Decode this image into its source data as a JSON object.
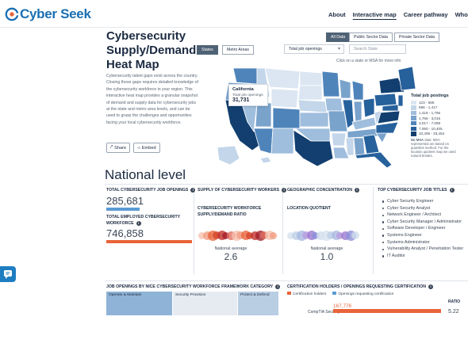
{
  "brand": {
    "name": "Cyber Seek"
  },
  "nav": {
    "items": [
      "About",
      "Interactive map",
      "Career pathway",
      "Who th"
    ]
  },
  "hero": {
    "title": "Cybersecurity Supply/Demand Heat Map",
    "description": "Cybersecurity talent gaps exist across the country. Closing these gaps requires detailed knowledge of the cybersecurity workforce in your region. This interactive heat map provides a granular snapshot of demand and supply data for cybersecurity jobs at the state and metro area levels, and can be used to grasp the challenges and opportunities facing your local cybersecurity workforce.",
    "share_label": "Share",
    "embed_label": "Embed"
  },
  "map_controls": {
    "sector_toggles": [
      "All Data",
      "Public Sector Data",
      "Private Sector Data"
    ],
    "area_toggles": [
      "States",
      "Metro Areas"
    ],
    "metric_select": "Total job openings",
    "search_placeholder": "Search State",
    "hint": "Click on a state or MSA for more info"
  },
  "tooltip": {
    "state": "California",
    "label": "Total job openings",
    "value": "31,731"
  },
  "legend": {
    "title": "Total job postings",
    "ranges": [
      "123 - 595",
      "596 - 1,417",
      "1,418 - 1,765",
      "1,766 - 3,016",
      "3,017 - 7,059",
      "7,060 - 10,405",
      "10,406 - 33,454"
    ],
    "colors": [
      "#dbe6f2",
      "#c3d6ea",
      "#9fbddc",
      "#7aa3cc",
      "#4f84bb",
      "#27619c",
      "#123f6f"
    ],
    "note_bold": "No MSA",
    "note": "data: MSA represented are based on quantiles method. For the location quotient map we used natural breaks."
  },
  "national": {
    "title": "National level",
    "col1_title": "TOTAL CYBERSECURITY JOB OPENINGS",
    "col1_value": "285,681",
    "col1b_title": "TOTAL EMPLOYED CYBERSECURITY WORKFORCE",
    "col1b_value": "746,858",
    "col2_title": "SUPPLY OF CYBERSECURITY WORKERS",
    "col2_sub": "CYBERSECURITY WORKFORCE SUPPLY/DEMAND RATIO",
    "col2_avg_label": "National average",
    "col2_avg": "2.6",
    "col3_title": "GEOGRAPHIC CONCENTRATION",
    "col3_sub": "LOCATION QUOTIENT",
    "col3_avg_label": "National average",
    "col3_avg": "1.0",
    "col4_title": "TOP CYBERSECURITY JOB TITLES",
    "job_titles": [
      "Cyber Security Engineer",
      "Cyber Security Analyst",
      "Network Engineer / Architect",
      "Cyber Security Manager / Administrator",
      "Software Developer / Engineer",
      "Systems Engineer",
      "Systems Administrator",
      "Vulnerability Analyst / Penetration Tester",
      "IT Auditor"
    ]
  },
  "bottom": {
    "left_title": "JOB OPENINGS BY NICE CYBERSECURITY WORKFORCE FRAMEWORK CATEGORY",
    "categories": [
      "Operate & Maintain",
      "Security Provision",
      "Protect & Defend"
    ],
    "right_title": "CERTIFICATION HOLDERS / OPENINGS REQUESTING CERTIFICATION",
    "legend_holders": "Certification holders",
    "legend_openings": "Openings requesting certification",
    "ratio_label": "RATIO",
    "cert_name": "CompTIA Security+",
    "cert_openings": "167,776",
    "cert_ratio": "5.22"
  },
  "colors": {
    "brand_blue": "#1a6fb3",
    "accent_orange": "#e8643a",
    "bar_blue": "#5b9bd5",
    "dark_slate": "#4f6275"
  }
}
